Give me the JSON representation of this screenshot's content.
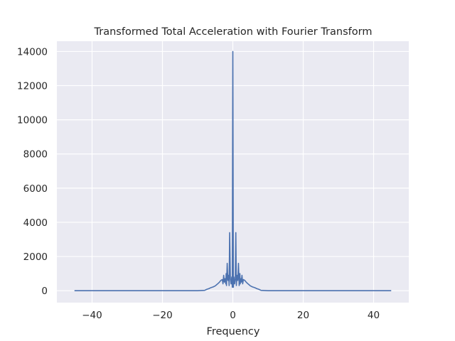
{
  "chart_data": {
    "type": "line",
    "title": "Transformed Total Acceleration with Fourier Transform",
    "xlabel": "Frequency",
    "ylabel": "",
    "xlim": [
      -50,
      50
    ],
    "ylim": [
      -700,
      14600
    ],
    "xticks": [
      -40,
      -20,
      0,
      20,
      40
    ],
    "xtick_labels": [
      "−40",
      "−20",
      "0",
      "20",
      "40"
    ],
    "yticks": [
      0,
      2000,
      4000,
      6000,
      8000,
      10000,
      12000,
      14000
    ],
    "ytick_labels": [
      "0",
      "2000",
      "4000",
      "6000",
      "8000",
      "10000",
      "12000",
      "14000"
    ],
    "grid": true,
    "series": [
      {
        "color": "#4c72b0",
        "x": [
          -45,
          -10,
          -8,
          -7.4,
          -6.8,
          -6.2,
          -5.6,
          -5.0,
          -4.6,
          -4.2,
          -3.8,
          -3.4,
          -3.0,
          -2.8,
          -2.6,
          -2.4,
          -2.2,
          -2.0,
          -1.9,
          -1.8,
          -1.6,
          -1.4,
          -1.2,
          -1.05,
          -0.9,
          -0.7,
          -0.5,
          -0.3,
          -0.15,
          0,
          0.15,
          0.3,
          0.5,
          0.7,
          0.85,
          1.0,
          1.2,
          1.4,
          1.6,
          1.8,
          2.0,
          2.1,
          2.2,
          2.4,
          2.6,
          2.8,
          3.0,
          3.4,
          3.8,
          4.2,
          4.6,
          5.0,
          5.6,
          6.2,
          6.8,
          7.4,
          8,
          10,
          45
        ],
        "values": [
          0,
          0,
          20,
          80,
          120,
          180,
          220,
          280,
          350,
          420,
          500,
          600,
          650,
          400,
          900,
          500,
          700,
          400,
          1000,
          300,
          1600,
          600,
          900,
          300,
          3400,
          700,
          400,
          800,
          200,
          14000,
          200,
          800,
          400,
          700,
          3400,
          300,
          900,
          600,
          1600,
          300,
          1000,
          400,
          700,
          500,
          900,
          400,
          650,
          600,
          500,
          420,
          350,
          280,
          220,
          180,
          120,
          80,
          20,
          0,
          0
        ]
      }
    ]
  }
}
